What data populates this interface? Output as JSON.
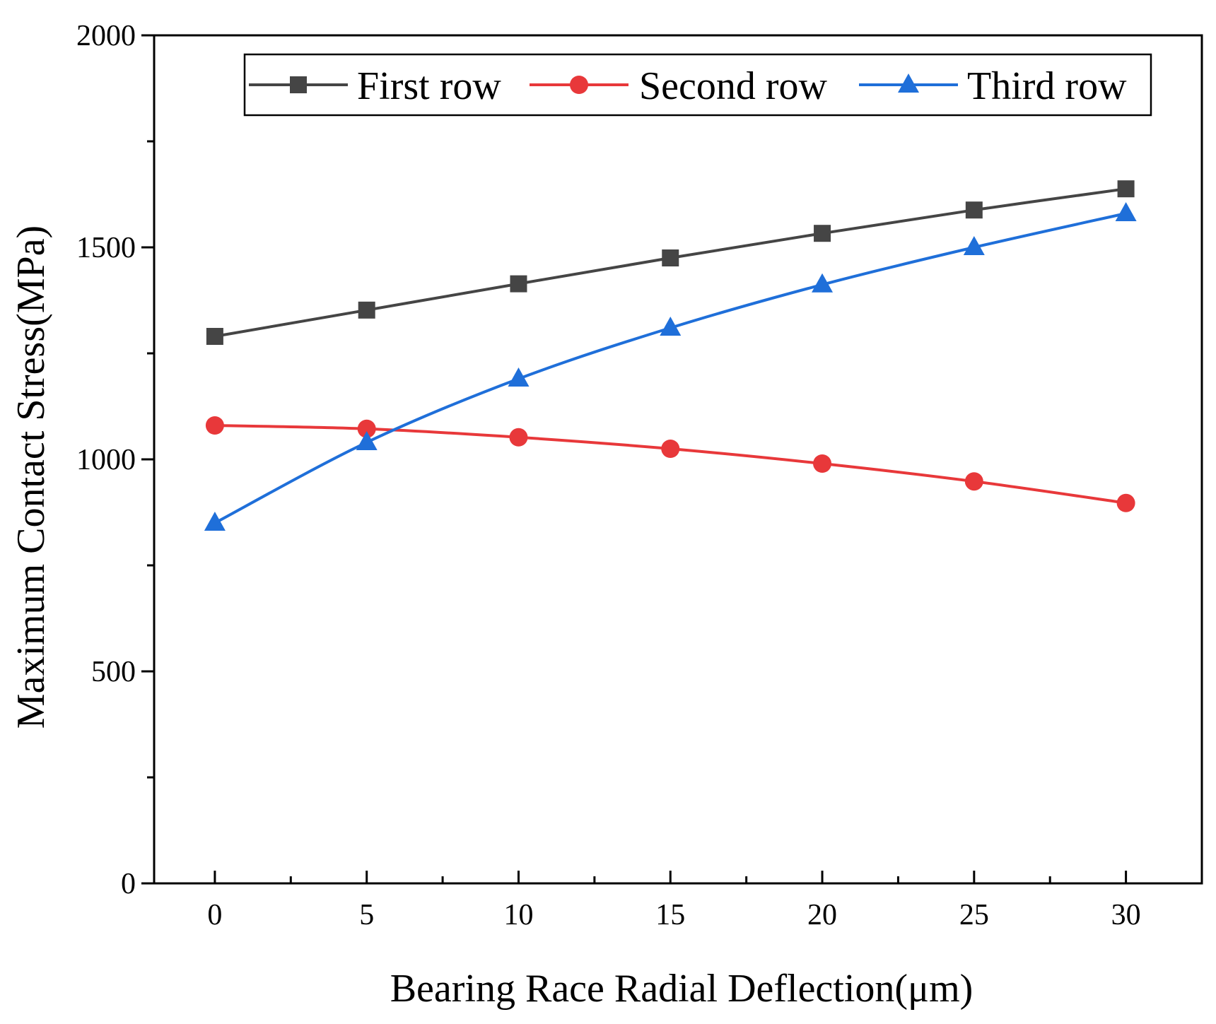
{
  "chart_data": {
    "type": "line",
    "title": "",
    "xlabel": "Bearing Race Radial Deflection(μm)",
    "ylabel": "Maximum Contact Stress(MPa)",
    "x": [
      0,
      5,
      10,
      15,
      20,
      25,
      30
    ],
    "xlim": [
      -2,
      32.5
    ],
    "ylim": [
      0,
      2000
    ],
    "xticks": [
      0,
      5,
      10,
      15,
      20,
      25,
      30
    ],
    "xtick_labels": [
      "0",
      "5",
      "10",
      "15",
      "20",
      "25",
      "30"
    ],
    "yticks": [
      0,
      500,
      1000,
      1500,
      2000
    ],
    "ytick_labels": [
      "0",
      "500",
      "1000",
      "1500",
      "2000"
    ],
    "grid": false,
    "legend_position": "top",
    "series": [
      {
        "name": "First row",
        "marker": "square",
        "color": "#454545",
        "values": [
          1290,
          1352,
          1414,
          1475,
          1533,
          1588,
          1638
        ]
      },
      {
        "name": "Second row",
        "marker": "circle",
        "color": "#e8383a",
        "values": [
          1080,
          1072,
          1052,
          1025,
          990,
          948,
          897
        ]
      },
      {
        "name": "Third row",
        "marker": "triangle",
        "color": "#1f6fd9",
        "values": [
          850,
          1040,
          1190,
          1310,
          1412,
          1500,
          1580
        ]
      }
    ]
  }
}
